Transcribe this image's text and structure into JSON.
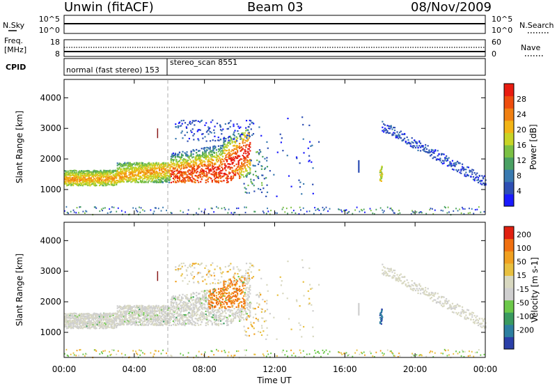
{
  "header": {
    "station": "Unwin (fitACF)",
    "beam": "Beam 03",
    "date": "08/Nov/2009"
  },
  "strips": {
    "nsky_label": "N.Sky",
    "nsky_top": "10^5",
    "nsky_bottom": "10^0",
    "nsearch_label": "N.Search",
    "nsearch_top": "10^5",
    "nsearch_bottom": "10^0",
    "freq_label_1": "Freq.",
    "freq_label_2": "[MHz]",
    "freq_top": "18",
    "freq_bottom": "8",
    "nave_label": "Nave",
    "nave_top": "60",
    "nave_bottom": "0",
    "cpid_label": "CPID",
    "cpid_mode_1": "normal (fast stereo) 153",
    "cpid_mode_2": "stereo_scan 8551"
  },
  "panels": {
    "ylabel": "Slant Range [km]",
    "xlabel": "Time UT",
    "power_cbar_label": "Power [dB]",
    "velocity_cbar_label": "Velocity [m s-1]"
  },
  "chart_data": [
    {
      "type": "heatmap",
      "name": "power",
      "ylabel": "Slant Range [km]",
      "xlabel": "Time UT",
      "x_range_hours": [
        0,
        24
      ],
      "y_range_km": [
        180,
        4600
      ],
      "x_ticks": [
        "00:00",
        "04:00",
        "08:00",
        "12:00",
        "16:00",
        "20:00",
        "00:00"
      ],
      "y_ticks": [
        1000,
        2000,
        3000,
        4000
      ],
      "colorbar": {
        "label": "Power [dB]",
        "ticks": [
          4,
          8,
          12,
          16,
          20,
          24,
          28
        ],
        "colors": [
          "#1a1aff",
          "#2e4fb4",
          "#3a7ab0",
          "#4aa063",
          "#7bc044",
          "#c8d426",
          "#f2b416",
          "#f08012",
          "#ee4d0e",
          "#e81c10"
        ]
      }
    },
    {
      "type": "heatmap",
      "name": "velocity",
      "ylabel": "Slant Range [km]",
      "xlabel": "Time UT",
      "x_range_hours": [
        0,
        24
      ],
      "y_range_km": [
        180,
        4600
      ],
      "x_ticks": [
        "00:00",
        "04:00",
        "08:00",
        "12:00",
        "16:00",
        "20:00",
        "00:00"
      ],
      "y_ticks": [
        1000,
        2000,
        3000,
        4000
      ],
      "colorbar": {
        "label": "Velocity [m s-1]",
        "ticks": [
          200,
          100,
          50,
          15,
          -15,
          -50,
          -100,
          -200
        ],
        "colors": [
          "#2a3fa8",
          "#2d7fa0",
          "#3a9a60",
          "#6cc84a",
          "#cfcfcf",
          "#d8d8c0",
          "#e8c040",
          "#f0a020",
          "#f07010",
          "#e02010"
        ]
      }
    }
  ]
}
